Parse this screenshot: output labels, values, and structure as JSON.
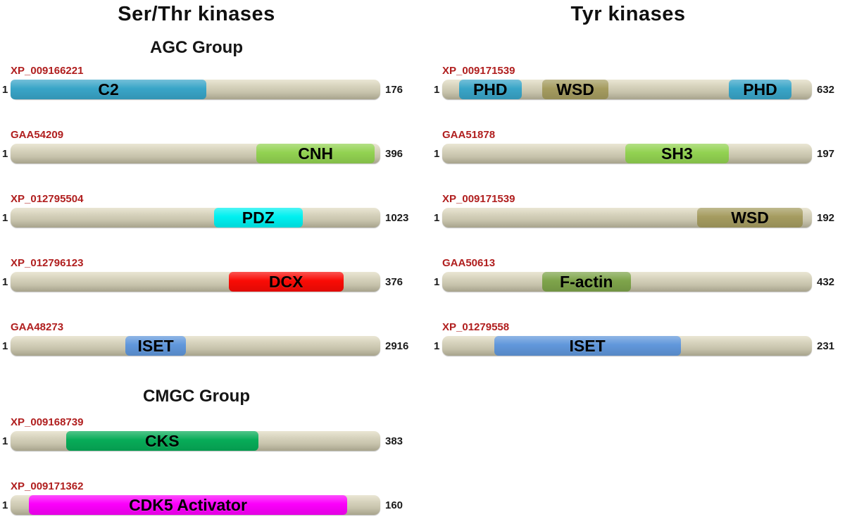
{
  "meta": {
    "accession_color": "#B01E1E",
    "bar_fill": "#CDC9B3",
    "background": "#FFFFFF"
  },
  "figure": {
    "columns": [
      {
        "title": "Ser/Thr kinases",
        "groups": [
          {
            "heading": "AGC Group",
            "proteins": [
              {
                "accession": "XP_009166221",
                "start": "1",
                "end": "176",
                "domains": [
                  {
                    "label": "C2",
                    "color": "#39A5C8",
                    "left_pct": 0,
                    "width_pct": 53
                  }
                ]
              },
              {
                "accession": "GAA54209",
                "start": "1",
                "end": "396",
                "domains": [
                  {
                    "label": "CNH",
                    "color": "#92D251",
                    "left_pct": 66.5,
                    "width_pct": 32
                  }
                ]
              },
              {
                "accession": "XP_012795504",
                "start": "1",
                "end": "1023",
                "domains": [
                  {
                    "label": "PDZ",
                    "color": "#00F0F0",
                    "left_pct": 55,
                    "width_pct": 24
                  }
                ]
              },
              {
                "accession": "XP_012796123",
                "start": "1",
                "end": "376",
                "domains": [
                  {
                    "label": "DCX",
                    "color": "#F90B05",
                    "left_pct": 59,
                    "width_pct": 31
                  }
                ]
              },
              {
                "accession": "GAA48273",
                "start": "1",
                "end": "2916",
                "domains": [
                  {
                    "label": "ISET",
                    "color": "#6097DB",
                    "left_pct": 31,
                    "width_pct": 16.5
                  }
                ]
              }
            ]
          },
          {
            "heading": "CMGC Group",
            "proteins": [
              {
                "accession": "XP_009168739",
                "start": "1",
                "end": "383",
                "domains": [
                  {
                    "label": "CKS",
                    "color": "#07AC58",
                    "left_pct": 15,
                    "width_pct": 52
                  }
                ]
              },
              {
                "accession": "XP_009171362",
                "start": "1",
                "end": "160",
                "domains": [
                  {
                    "label": "CDK5 Activator",
                    "color": "#FB00FB",
                    "left_pct": 5,
                    "width_pct": 86
                  }
                ]
              }
            ]
          }
        ]
      },
      {
        "title": "Tyr kinases",
        "groups": [
          {
            "heading": "",
            "proteins": [
              {
                "accession": "XP_009171539",
                "start": "1",
                "end": "632",
                "domains": [
                  {
                    "label": "PHD",
                    "color": "#39A5C8",
                    "left_pct": 4.5,
                    "width_pct": 17
                  },
                  {
                    "label": "WSD",
                    "color": "#A59C60",
                    "left_pct": 27,
                    "width_pct": 18
                  },
                  {
                    "label": "PHD",
                    "color": "#39A5C8",
                    "left_pct": 77.5,
                    "width_pct": 17
                  }
                ]
              },
              {
                "accession": "GAA51878",
                "start": "1",
                "end": "197",
                "domains": [
                  {
                    "label": "SH3",
                    "color": "#92D251",
                    "left_pct": 49.5,
                    "width_pct": 28
                  }
                ]
              },
              {
                "accession": "XP_009171539",
                "start": "1",
                "end": "192",
                "domains": [
                  {
                    "label": "WSD",
                    "color": "#A59C60",
                    "left_pct": 69,
                    "width_pct": 28.5
                  }
                ]
              },
              {
                "accession": "GAA50613",
                "start": "1",
                "end": "432",
                "domains": [
                  {
                    "label": "F-actin",
                    "color": "#7EA44A",
                    "left_pct": 27,
                    "width_pct": 24
                  }
                ]
              },
              {
                "accession": "XP_01279558",
                "start": "1",
                "end": "231",
                "domains": [
                  {
                    "label": "ISET",
                    "color": "#6097DB",
                    "left_pct": 14,
                    "width_pct": 50.5
                  }
                ]
              }
            ]
          }
        ]
      }
    ]
  }
}
